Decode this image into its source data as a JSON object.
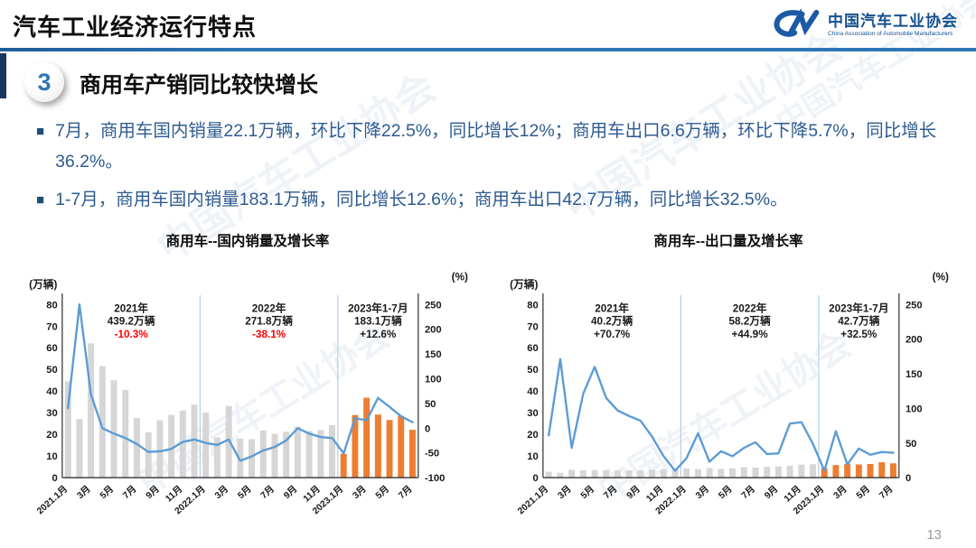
{
  "header": {
    "title": "汽车工业经济运行特点",
    "logo": {
      "name_cn": "中国汽车工业协会",
      "name_en": "China Association of Automobile Manufacturers"
    }
  },
  "section": {
    "number": "3",
    "heading": "商用车产销同比较快增长"
  },
  "bullets": [
    {
      "text": "7月，商用车国内销量22.1万辆，环比下降22.5%，同比增长12%；商用车出口6.6万辆，环比下降5.7%，同比增长36.2%。"
    },
    {
      "text": "1-7月，商用车国内销量183.1万辆，同比增长12.6%；商用车出口42.7万辆，同比增长32.5%。"
    }
  ],
  "watermark": {
    "text": "中国汽车工业协会"
  },
  "footer": {
    "page_number": "13"
  },
  "colors": {
    "accent_blue": "#2e75b6",
    "bar_gray": "#d6d6d6",
    "bar_orange": "#ed7d31",
    "line_blue": "#5b9bd5",
    "negative_red": "#ff0000",
    "text_navy": "#2e5b8f"
  },
  "chart_data": [
    {
      "type": "bar",
      "combo": "bar+line",
      "title": "商用车--国内销量及增长率",
      "left_axis": {
        "label": "(万辆)",
        "min": 0,
        "max": 80,
        "step": 10
      },
      "right_axis": {
        "label": "(%)",
        "min": -100,
        "max": 250,
        "step": 50
      },
      "x_tick_labels": [
        "2021.1月",
        "3月",
        "5月",
        "7月",
        "9月",
        "11月",
        "2022.1月",
        "3月",
        "5月",
        "7月",
        "9月",
        "11月",
        "2023.1月",
        "3月",
        "5月",
        "7月"
      ],
      "bars_series_name": "国内销量(万辆)",
      "bars": [
        44.5,
        27,
        62,
        51.5,
        45,
        40.5,
        27.5,
        21,
        26.5,
        29,
        31,
        33.7,
        30.1,
        18.5,
        33,
        18,
        17.8,
        21.8,
        20.2,
        21.2,
        23.5,
        21.5,
        22,
        24.2,
        11,
        28.9,
        36.9,
        29.1,
        26.6,
        28.5,
        22.1
      ],
      "line_series_name": "同比增长率(%)",
      "line": [
        40,
        250,
        68,
        0,
        -11,
        -20,
        -32,
        -48,
        -47,
        -42,
        -28,
        -23,
        -30,
        -34,
        -23,
        -66,
        -57,
        -45,
        -38,
        -25,
        0,
        -11,
        -18,
        -20,
        -51,
        20,
        16,
        61,
        43,
        24,
        12
      ],
      "highlight_start_index": 24,
      "separators_at": [
        12,
        24
      ],
      "annotation_centers": [
        5.5,
        17.5,
        27
      ],
      "annotations": [
        {
          "year": "2021年",
          "total": "439.2万辆",
          "pct": "-10.3%",
          "pct_color": "red"
        },
        {
          "year": "2022年",
          "total": "271.8万辆",
          "pct": "-38.1%",
          "pct_color": "red"
        },
        {
          "year": "2023年1-7月",
          "total": "183.1万辆",
          "pct": "+12.6%",
          "pct_color": "black"
        }
      ]
    },
    {
      "type": "bar",
      "combo": "bar+line",
      "title": "商用车--出口量及增长率",
      "left_axis": {
        "label": "(万辆)",
        "min": 0,
        "max": 80,
        "step": 10
      },
      "right_axis": {
        "label": "(%)",
        "min": 0,
        "max": 250,
        "step": 50
      },
      "x_tick_labels": [
        "2021.1月",
        "3月",
        "5月",
        "7月",
        "9月",
        "11月",
        "2022.1月",
        "3月",
        "5月",
        "7月",
        "9月",
        "11月",
        "2023.1月",
        "3月",
        "5月",
        "7月"
      ],
      "bars_series_name": "出口量(万辆)",
      "bars": [
        2.7,
        2.2,
        3.6,
        3.3,
        3.5,
        3.4,
        3.3,
        3.4,
        3.5,
        3.6,
        3.7,
        4.0,
        4.2,
        3.9,
        4.4,
        4.0,
        4.3,
        4.8,
        4.7,
        5.0,
        5.2,
        5.5,
        6.0,
        6.2,
        4.4,
        5.8,
        6.4,
        6.1,
        6.3,
        7.1,
        6.6
      ],
      "line_series_name": "同比增长率(%)",
      "line": [
        61,
        171,
        43,
        121,
        160,
        115,
        97,
        89,
        82,
        59,
        31,
        10,
        28,
        64,
        23,
        38,
        31,
        43,
        51,
        34,
        35,
        78,
        80,
        49,
        10,
        67,
        19,
        42,
        33,
        37,
        36
      ],
      "highlight_start_index": 24,
      "separators_at": [
        12,
        24
      ],
      "annotation_centers": [
        5.5,
        17.5,
        27
      ],
      "annotations": [
        {
          "year": "2021年",
          "total": "40.2万辆",
          "pct": "+70.7%",
          "pct_color": "black"
        },
        {
          "year": "2022年",
          "total": "58.2万辆",
          "pct": "+44.9%",
          "pct_color": "black"
        },
        {
          "year": "2023年1-7月",
          "total": "42.7万辆",
          "pct": "+32.5%",
          "pct_color": "black"
        }
      ]
    }
  ]
}
